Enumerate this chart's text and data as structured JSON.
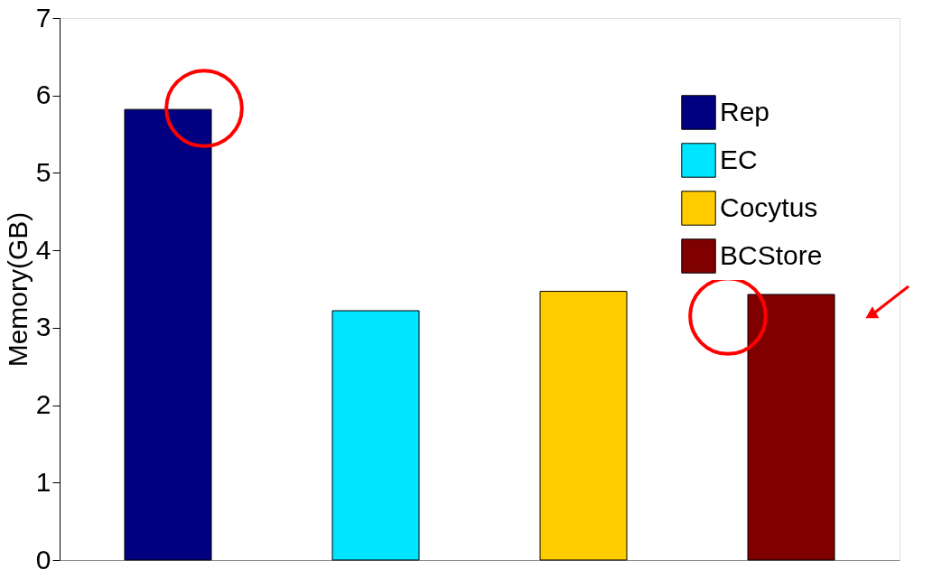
{
  "chart_data": {
    "type": "bar",
    "ylabel": "Memory(GB)",
    "categories": [
      null,
      null,
      null,
      null
    ],
    "series": [
      {
        "name": "Rep",
        "color": "#000080",
        "values": [
          5.82,
          null,
          null,
          null
        ]
      },
      {
        "name": "EC",
        "color": "#00e5ff",
        "values": [
          null,
          3.22,
          null,
          null
        ]
      },
      {
        "name": "Cocytus",
        "color": "#ffcc00",
        "values": [
          null,
          null,
          3.47,
          null
        ]
      },
      {
        "name": "BCStore",
        "color": "#800000",
        "values": [
          null,
          null,
          null,
          3.43
        ]
      }
    ],
    "ylim": [
      0,
      7
    ],
    "yticks": [
      0,
      1,
      2,
      3,
      4,
      5,
      6,
      7
    ],
    "grid": false,
    "legend": "top right"
  }
}
